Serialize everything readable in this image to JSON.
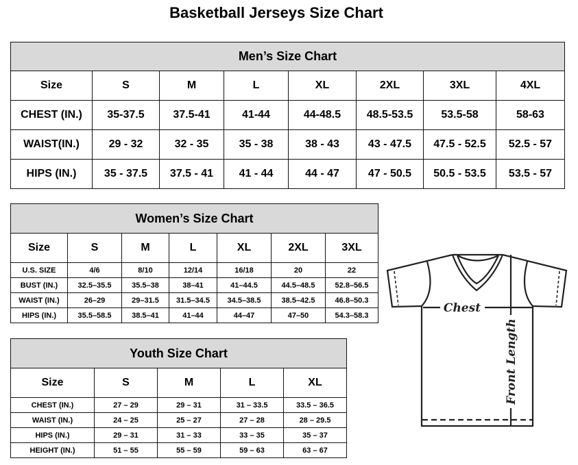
{
  "title": "Basketball Jerseys Size Chart",
  "men": {
    "title": "Men’s Size Chart",
    "header": [
      "Size",
      "S",
      "M",
      "L",
      "XL",
      "2XL",
      "3XL",
      "4XL"
    ],
    "rows": [
      [
        "CHEST (IN.)",
        "35-37.5",
        "37.5-41",
        "41-44",
        "44-48.5",
        "48.5-53.5",
        "53.5-58",
        "58-63"
      ],
      [
        "WAIST(IN.)",
        "29 - 32",
        "32 - 35",
        "35 - 38",
        "38 - 43",
        "43 - 47.5",
        "47.5 - 52.5",
        "52.5 - 57"
      ],
      [
        "HIPS (IN.)",
        "35 - 37.5",
        "37.5 - 41",
        "41 - 44",
        "44 - 47",
        "47 - 50.5",
        "50.5 - 53.5",
        "53.5 - 57"
      ]
    ]
  },
  "women": {
    "title": "Women’s Size Chart",
    "header": [
      "Size",
      "S",
      "M",
      "L",
      "XL",
      "2XL",
      "3XL"
    ],
    "rows": [
      [
        "U.S. SIZE",
        "4/6",
        "8/10",
        "12/14",
        "16/18",
        "20",
        "22"
      ],
      [
        "BUST (IN.)",
        "32.5–35.5",
        "35.5–38",
        "38–41",
        "41–44.5",
        "44.5–48.5",
        "52.8–56.5"
      ],
      [
        "WAIST (IN.)",
        "26–29",
        "29–31.5",
        "31.5–34.5",
        "34.5–38.5",
        "38.5–42.5",
        "46.8–50.3"
      ],
      [
        "HIPS (IN.)",
        "35.5–58.5",
        "38.5–41",
        "41–44",
        "44–47",
        "47–50",
        "54.3–58.3"
      ]
    ]
  },
  "youth": {
    "title": "Youth Size Chart",
    "header": [
      "Size",
      "S",
      "M",
      "L",
      "XL"
    ],
    "rows": [
      [
        "CHEST (IN.)",
        "27 – 29",
        "29 – 31",
        "31 – 33.5",
        "33.5 – 36.5"
      ],
      [
        "WAIST (IN.)",
        "24 – 25",
        "25 – 27",
        "27 – 28",
        "28 – 29.5"
      ],
      [
        "HIPS (IN.)",
        "29 – 31",
        "31 – 33",
        "33 – 35",
        "35 – 37"
      ],
      [
        "HEIGHT (IN.)",
        "51 – 55",
        "55 – 59",
        "59 – 63",
        "63 – 67"
      ]
    ]
  },
  "diagram": {
    "chest_label": "Chest",
    "length_label": "Front Length",
    "icon": "t-shirt-icon"
  }
}
